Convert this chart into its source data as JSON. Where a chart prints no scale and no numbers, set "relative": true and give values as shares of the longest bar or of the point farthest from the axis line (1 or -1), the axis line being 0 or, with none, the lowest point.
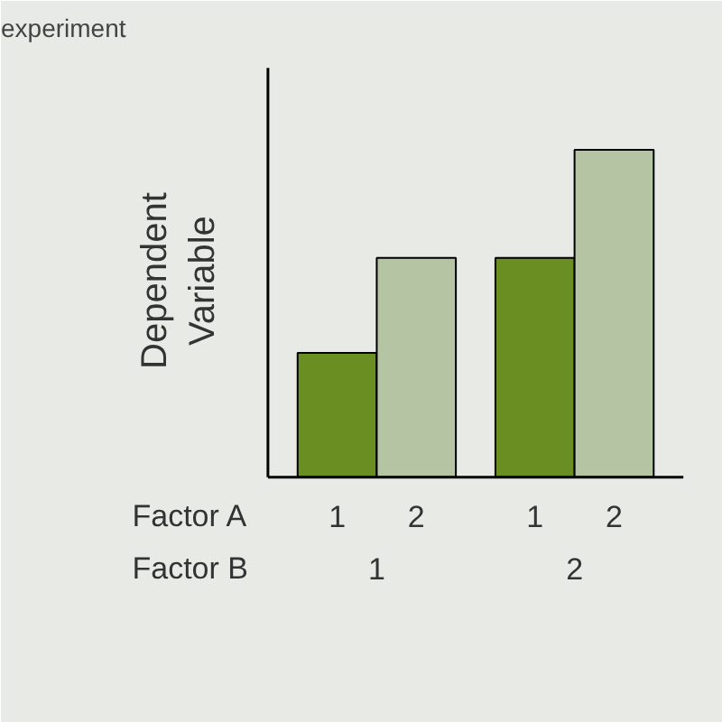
{
  "chart_data": {
    "type": "bar",
    "title": "experiment",
    "ylabel": "Dependent Variable",
    "relative": true,
    "categories": [
      "1",
      "2"
    ],
    "series": [
      {
        "name": "1",
        "color": "#6b8e23",
        "values": [
          0.38,
          0.67
        ]
      },
      {
        "name": "2",
        "color": "#b5c4a3",
        "values": [
          0.67,
          1
        ]
      }
    ],
    "annotations": [
      "Factor A",
      "Factor B"
    ]
  }
}
